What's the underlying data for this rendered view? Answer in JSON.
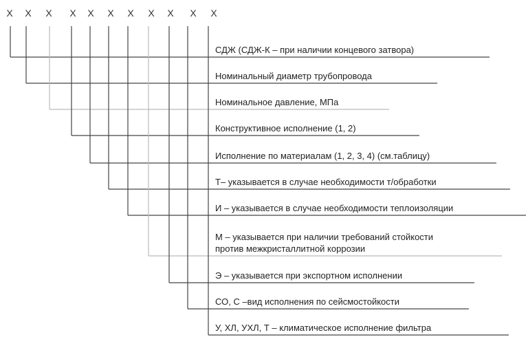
{
  "placeholders": [
    "X",
    "X",
    "X",
    "X",
    "X",
    "X",
    "X",
    "X",
    "X",
    "X",
    "X"
  ],
  "rows": [
    {
      "lines": [
        "СДЖ (СДЖ-К – при наличии концевого затвора)"
      ]
    },
    {
      "lines": [
        "Номинальный диаметр трубопровода"
      ]
    },
    {
      "lines": [
        "Номинальное давление, МПа"
      ]
    },
    {
      "lines": [
        "Конструктивное исполнение (1, 2)"
      ]
    },
    {
      "lines": [
        "Исполнение по материалам (1, 2, 3, 4) (см.таблицу)"
      ]
    },
    {
      "lines": [
        "Т– указывается в случае необходимости т/обработки"
      ]
    },
    {
      "lines": [
        "И – указывается в случае необходимости теплоизоляции"
      ]
    },
    {
      "lines": [
        "М – указывается при наличии требований стойкости",
        "против межкристаллитной коррозии"
      ]
    },
    {
      "lines": [
        "Э – указывается при экспортном исполнении"
      ]
    },
    {
      "lines": [
        "СО, С –вид исполнения по сейсмостойкости"
      ]
    },
    {
      "lines": [
        "У, ХЛ, УХЛ, Т – климатическое исполнение фильтра"
      ]
    }
  ]
}
